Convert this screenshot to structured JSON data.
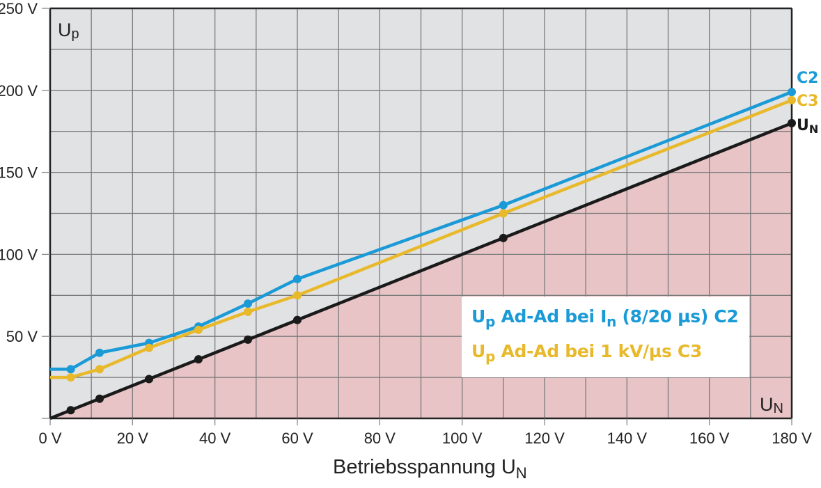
{
  "chart_data": {
    "type": "line",
    "title": "",
    "xlabel": "Betriebsspannung U_N",
    "ylabel": "U_p",
    "xlim": [
      0,
      180
    ],
    "ylim": [
      0,
      250
    ],
    "x_ticks": [
      "0 V",
      "20 V",
      "40 V",
      "60 V",
      "80 V",
      "100 V",
      "120 V",
      "140 V",
      "160 V",
      "180 V"
    ],
    "y_ticks": [
      "250 V",
      "200 V",
      "150 V",
      "100 V",
      "50 V"
    ],
    "grid": true,
    "grid_x_step": 10,
    "grid_y_step": 25,
    "region_below_un_fill": "#e8c4c6",
    "region_above_un_fill": "#e1e2e4",
    "series": [
      {
        "name": "C2",
        "legend": "Up Ad-Ad bei In (8/20 µs) C2",
        "color": "#1a9ad6",
        "x": [
          0,
          5,
          12,
          24,
          36,
          48,
          60,
          110,
          180
        ],
        "values": [
          30,
          30,
          40,
          46,
          56,
          70,
          85,
          130,
          199
        ],
        "markers_from_index": 1
      },
      {
        "name": "C3",
        "legend": "Up Ad-Ad bei 1 kV/µs C3",
        "color": "#e8b92a",
        "x": [
          0,
          5,
          12,
          24,
          36,
          48,
          60,
          110,
          180
        ],
        "values": [
          25,
          25,
          30,
          43,
          54,
          65,
          75,
          125,
          194
        ],
        "markers_from_index": 1
      },
      {
        "name": "UN",
        "legend": "UN",
        "color": "#1a1a1a",
        "x": [
          0,
          5,
          12,
          24,
          36,
          48,
          60,
          110,
          180
        ],
        "values": [
          0,
          5,
          12,
          24,
          36,
          48,
          60,
          110,
          180
        ],
        "markers_from_index": 1
      }
    ],
    "annotations": [
      "Up (top-left)",
      "UN (bottom-right)",
      "C2",
      "C3",
      "UN (right end labels)"
    ],
    "legend_position": "lower-right inside plot"
  },
  "labels": {
    "corner_up_main": "U",
    "corner_up_sub": "p",
    "corner_un_main": "U",
    "corner_un_sub": "N",
    "end_c2": "C2",
    "end_c3": "C3",
    "end_un_main": "U",
    "end_un_sub": "N",
    "x_title_main": "Betriebsspannung U",
    "x_title_sub": "N",
    "legend_c2_u": "U",
    "legend_c2_p": "p",
    "legend_c2_text1": " Ad-Ad bei I",
    "legend_c2_n": "n",
    "legend_c2_text2": " (8/20 µs) C2",
    "legend_c3_u": "U",
    "legend_c3_p": "p",
    "legend_c3_text": " Ad-Ad bei 1 kV/µs C3"
  }
}
